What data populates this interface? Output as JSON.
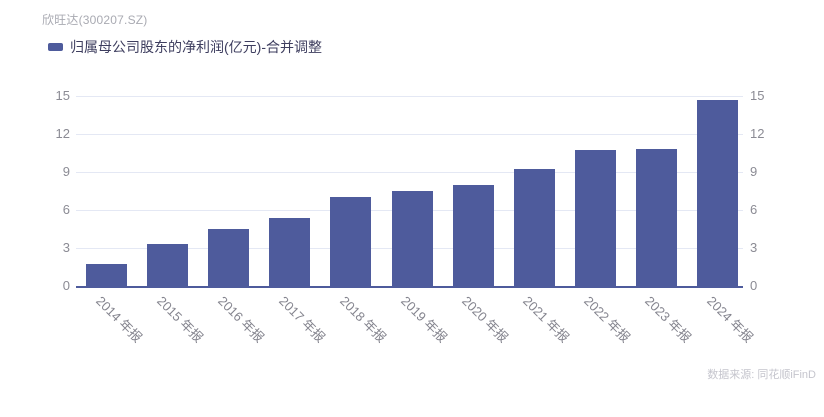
{
  "header": {
    "title": "欣旺达(300207.SZ)",
    "source": "数据来源: 同花顺iFinD"
  },
  "legend": {
    "label": "归属母公司股东的净利润(亿元)-合并调整",
    "marker_color": "#4e5b9c"
  },
  "chart_data": {
    "type": "bar",
    "title": "归属母公司股东的净利润(亿元)-合并调整",
    "categories": [
      "2014 年报",
      "2015 年报",
      "2016 年报",
      "2017 年报",
      "2018 年报",
      "2019 年报",
      "2020 年报",
      "2021 年报",
      "2022 年报",
      "2023 年报",
      "2024 年报"
    ],
    "values": [
      1.7,
      3.3,
      4.5,
      5.4,
      7.0,
      7.5,
      8.0,
      9.2,
      10.7,
      10.8,
      14.7
    ],
    "xlabel": "",
    "ylabel": "",
    "ylim": [
      0,
      15
    ],
    "yticks": [
      0,
      3,
      6,
      9,
      12,
      15
    ],
    "grid": true,
    "y_axis_sides": "both",
    "legend_position": "top-left",
    "bar_color": "#4e5b9c",
    "grid_color": "#e4e8f4",
    "axis_line_color": "#4e5b9c"
  }
}
